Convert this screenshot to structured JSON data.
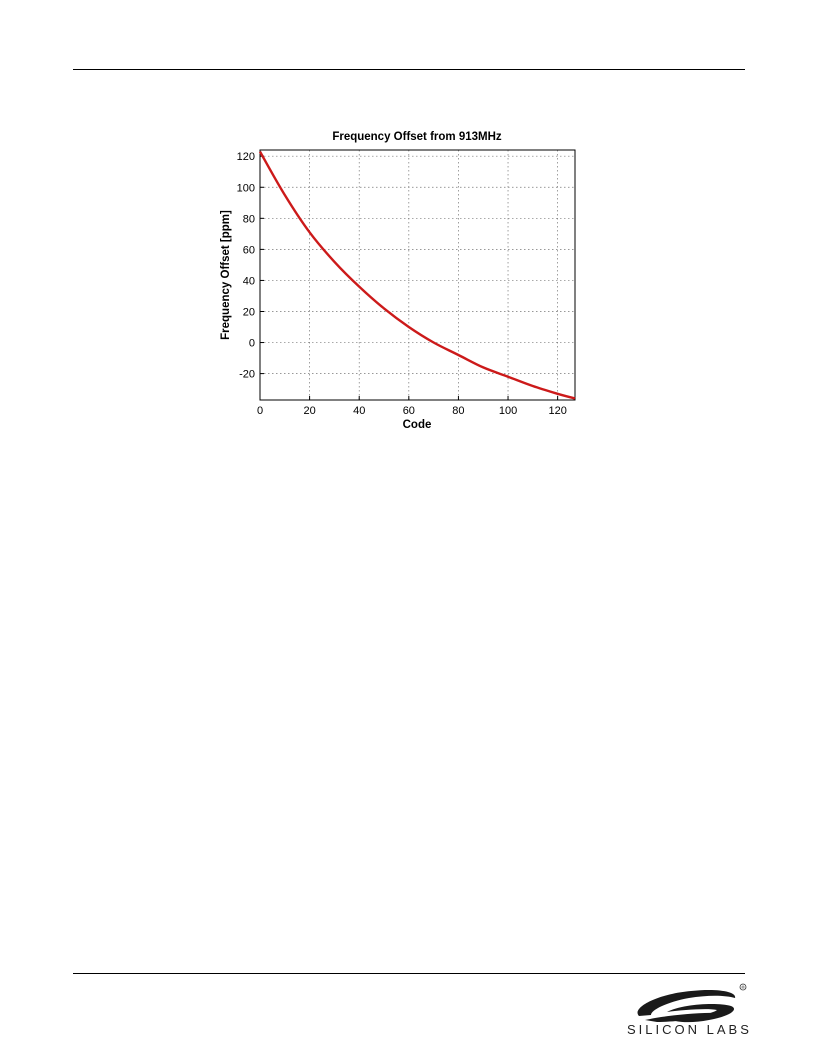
{
  "logo": {
    "name": "silicon-labs-logo",
    "text": "SILICON LABS",
    "registered": "®"
  },
  "chart_data": {
    "type": "line",
    "title": "Frequency Offset from 913MHz",
    "xlabel": "Code",
    "ylabel": "Frequency Offset [ppm]",
    "xlim": [
      0,
      127
    ],
    "ylim": [
      -37,
      124
    ],
    "xticks": [
      0,
      20,
      40,
      60,
      80,
      100,
      120
    ],
    "yticks": [
      -20,
      0,
      20,
      40,
      60,
      80,
      100,
      120
    ],
    "grid": true,
    "series": [
      {
        "color": "#cc1a1a",
        "x": [
          0,
          10,
          20,
          30,
          40,
          50,
          60,
          70,
          80,
          90,
          100,
          110,
          120,
          127
        ],
        "y": [
          123,
          95,
          71,
          52,
          36,
          22,
          10,
          0,
          -8,
          -16,
          -22,
          -28,
          -33,
          -36
        ]
      }
    ]
  }
}
